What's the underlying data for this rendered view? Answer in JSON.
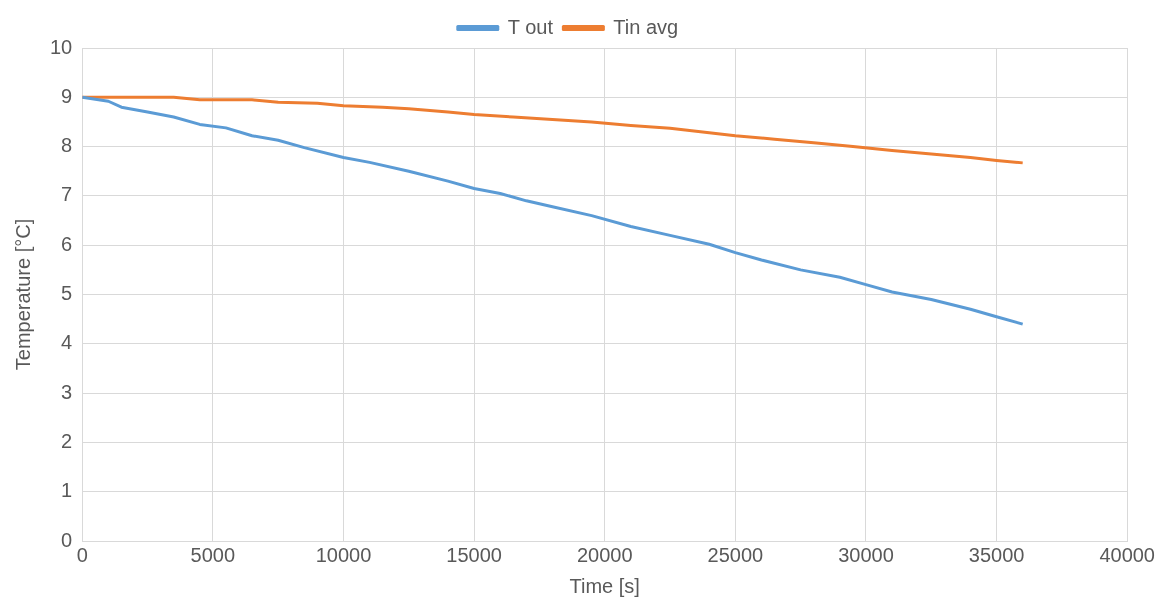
{
  "chart_data": {
    "type": "line",
    "xlabel": "Time [s]",
    "ylabel": "Temperature [°C]",
    "xlim": [
      0,
      40000
    ],
    "xticks": [
      0,
      5000,
      10000,
      15000,
      20000,
      25000,
      30000,
      35000,
      40000
    ],
    "ylim": [
      0,
      10
    ],
    "yticks": [
      0,
      1,
      2,
      3,
      4,
      5,
      6,
      7,
      8,
      9,
      10
    ],
    "grid": true,
    "legend": "top",
    "marker": "none",
    "line_style": "solid",
    "series": [
      {
        "name": "T out",
        "color": "#5b9bd5",
        "x": [
          0,
          1000,
          1500,
          2500,
          3500,
          4500,
          5500,
          6500,
          7500,
          8500,
          10000,
          11000,
          12500,
          14000,
          15000,
          16000,
          17000,
          18000,
          19500,
          21000,
          22500,
          24000,
          25000,
          26000,
          27500,
          29000,
          30000,
          31000,
          32500,
          34000,
          35000,
          36000
        ],
        "values": [
          9.0,
          8.92,
          8.8,
          8.7,
          8.6,
          8.45,
          8.38,
          8.22,
          8.13,
          7.98,
          7.78,
          7.68,
          7.5,
          7.3,
          7.15,
          7.05,
          6.9,
          6.78,
          6.6,
          6.38,
          6.2,
          6.02,
          5.85,
          5.7,
          5.5,
          5.35,
          5.2,
          5.05,
          4.9,
          4.7,
          4.55,
          4.4
        ]
      },
      {
        "name": "Tin avg",
        "color": "#ed7d31",
        "x": [
          0,
          3500,
          4500,
          6500,
          7500,
          9000,
          10000,
          11500,
          12500,
          14000,
          15000,
          16500,
          18000,
          19500,
          21000,
          22500,
          24000,
          25000,
          26500,
          28000,
          29500,
          31000,
          32500,
          34000,
          35000,
          36000
        ],
        "values": [
          9.0,
          9.0,
          8.95,
          8.95,
          8.9,
          8.88,
          8.83,
          8.8,
          8.77,
          8.7,
          8.65,
          8.6,
          8.55,
          8.5,
          8.43,
          8.37,
          8.28,
          8.22,
          8.15,
          8.08,
          8.0,
          7.92,
          7.85,
          7.78,
          7.72,
          7.67
        ]
      }
    ]
  }
}
